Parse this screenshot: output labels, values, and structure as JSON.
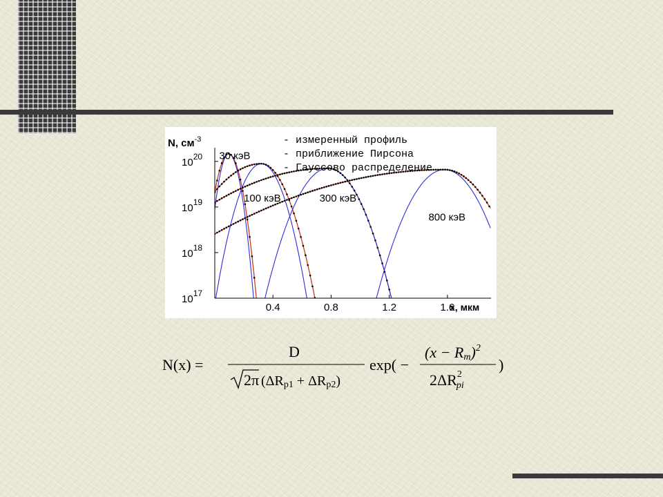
{
  "chart_data": {
    "type": "line",
    "ylabel": "N, см-3",
    "xlabel": "x, мкм",
    "xlim": [
      0,
      1.9
    ],
    "ylim_log10": [
      17,
      20.3
    ],
    "y_scale": "log",
    "x_ticks": [
      {
        "value": 0.4,
        "label": "0.4"
      },
      {
        "value": 0.8,
        "label": "0.8"
      },
      {
        "value": 1.2,
        "label": "1.2"
      },
      {
        "value": 1.6,
        "label": "1.6"
      }
    ],
    "y_ticks": [
      {
        "value": 17,
        "base": "10",
        "exp": "17"
      },
      {
        "value": 18,
        "base": "10",
        "exp": "18"
      },
      {
        "value": 19,
        "base": "10",
        "exp": "19"
      },
      {
        "value": 20,
        "base": "10",
        "exp": "20"
      }
    ],
    "legend": [
      {
        "label": "- измеренный профиль",
        "color": "#000000"
      },
      {
        "label": "- приближение Пирсона",
        "color": "#c83a1e"
      },
      {
        "label": "- Гауссово распределение",
        "color": "#2a2ae0"
      }
    ],
    "legend_position": "top",
    "annotations": [
      {
        "text": "30 кэВ",
        "x": 0.03,
        "y": 20.05
      },
      {
        "text": "100 кэВ",
        "x": 0.2,
        "y": 19.12
      },
      {
        "text": "300 кэВ",
        "x": 0.72,
        "y": 19.12
      },
      {
        "text": "800 кэВ",
        "x": 1.47,
        "y": 18.7
      }
    ],
    "series": [
      {
        "name": "30 кэВ",
        "pearson": {
          "rp": 0.095,
          "peak": 20.17,
          "left": 0.048,
          "right": 0.05
        },
        "gauss": {
          "rp": 0.095,
          "peak": 20.17,
          "left": 0.04,
          "right": 0.045
        }
      },
      {
        "name": "100 кэВ",
        "pearson": {
          "rp": 0.32,
          "peak": 19.95,
          "left": 0.19,
          "right": 0.1
        },
        "gauss": {
          "rp": 0.32,
          "peak": 19.95,
          "left": 0.085,
          "right": 0.085
        }
      },
      {
        "name": "300 кэВ",
        "pearson": {
          "rp": 0.78,
          "peak": 19.85,
          "left": 0.42,
          "right": 0.12
        },
        "gauss": {
          "rp": 0.78,
          "peak": 19.85,
          "left": 0.12,
          "right": 0.12
        }
      },
      {
        "name": "800 кэВ",
        "pearson": {
          "rp": 1.58,
          "peak": 19.82,
          "left": 0.62,
          "right": 0.16
        },
        "gauss": {
          "rp": 1.58,
          "peak": 19.82,
          "left": 0.13,
          "right": 0.13
        }
      }
    ]
  },
  "formula": {
    "lhs": "N(x) =",
    "numerator": "D",
    "sqrt_arg": "2π",
    "denom_a": "(ΔR",
    "denom_a_sub": "p1",
    "denom_plus": " + ΔR",
    "denom_b_sub": "p2",
    "denom_close": ")",
    "exp_open": "exp( −",
    "exp_num_open": "(x − R",
    "exp_num_sub": "m",
    "exp_num_close": ")",
    "exp_num_pow": "2",
    "exp_den_pre": "2ΔR",
    "exp_den_pow": "2",
    "exp_den_sub": "pi",
    "exp_close": ")"
  }
}
